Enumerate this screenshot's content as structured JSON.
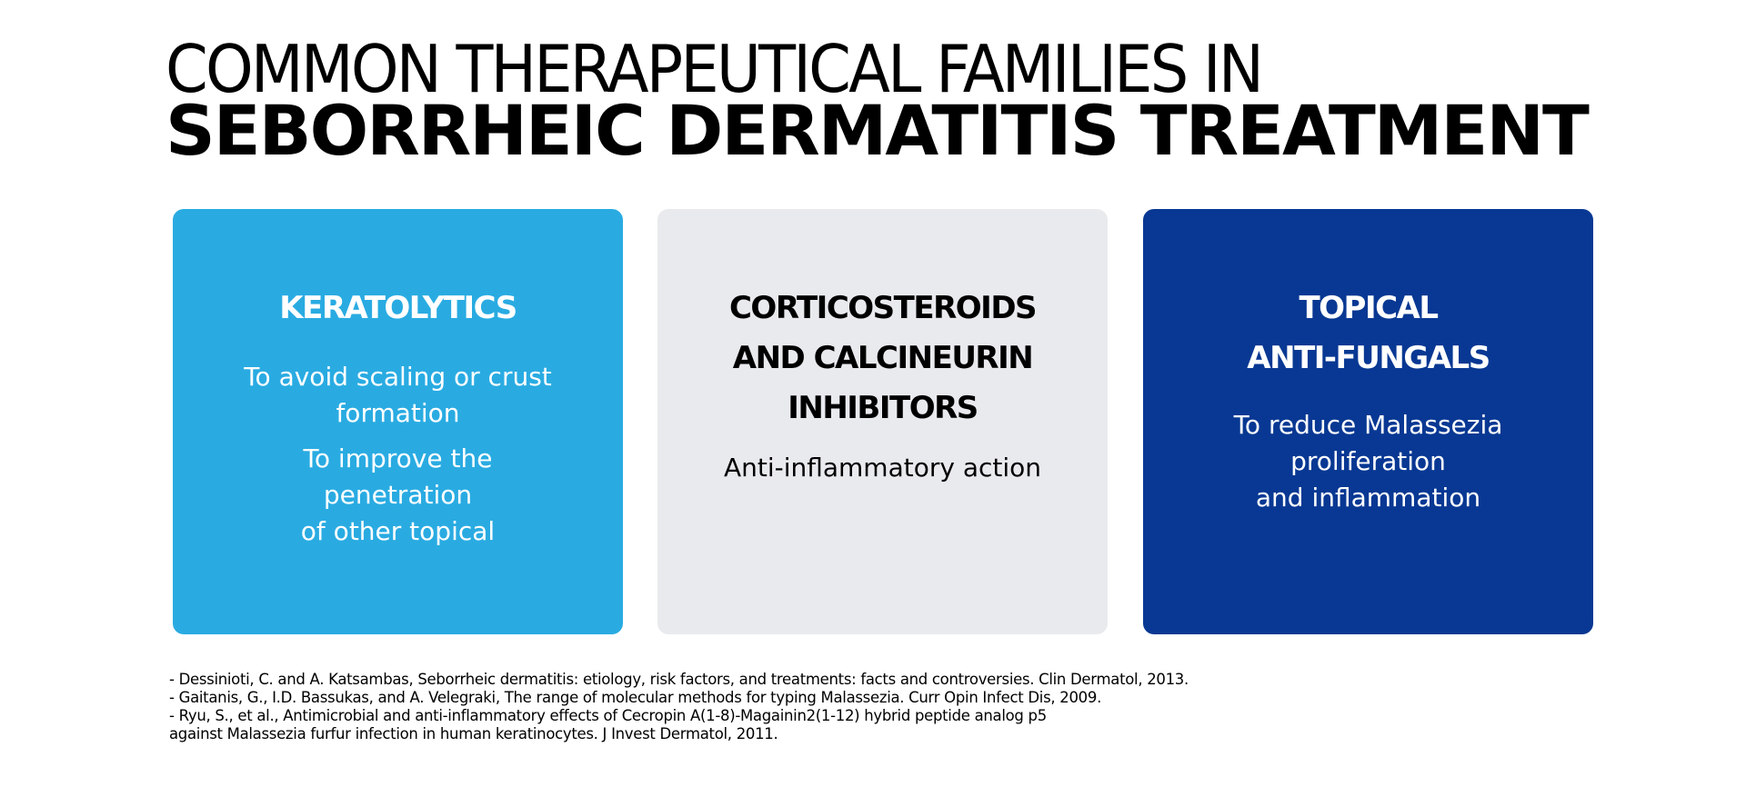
{
  "header": {
    "title_line1": "COMMON THERAPEUTICAL FAMILIES IN",
    "title_line2": "SEBORRHEIC DERMATITIS TREATMENT"
  },
  "colors": {
    "card1": "#29abe2",
    "card2": "#e9eaee",
    "card3": "#083893"
  },
  "cards": [
    {
      "title": [
        "KERATOLYTICS"
      ],
      "body": [
        [
          "To avoid scaling or crust",
          "formation"
        ],
        [
          "To improve the",
          "penetration",
          "of other topical"
        ]
      ]
    },
    {
      "title": [
        "CORTICOSTEROIDS",
        "AND CALCINEURIN",
        "INHIBITORS"
      ],
      "body": [
        [
          "Anti-inflammatory action"
        ]
      ]
    },
    {
      "title": [
        "TOPICAL",
        "ANTI-FUNGALS"
      ],
      "body": [
        [
          "To reduce Malassezia",
          "proliferation",
          "and inflammation"
        ]
      ]
    }
  ],
  "references": [
    "- Dessinioti, C. and A. Katsambas, Seborrheic dermatitis: etiology, risk factors, and treatments: facts and controversies. Clin Dermatol, 2013.",
    "- Gaitanis, G., I.D. Bassukas, and A. Velegraki, The range of molecular methods for typing Malassezia. Curr Opin Infect Dis, 2009.",
    "- Ryu, S., et al., Antimicrobial and anti-inflammatory effects of Cecropin A(1-8)-Magainin2(1-12) hybrid peptide analog p5",
    "against Malassezia furfur infection in human keratinocytes. J Invest Dermatol, 2011."
  ]
}
